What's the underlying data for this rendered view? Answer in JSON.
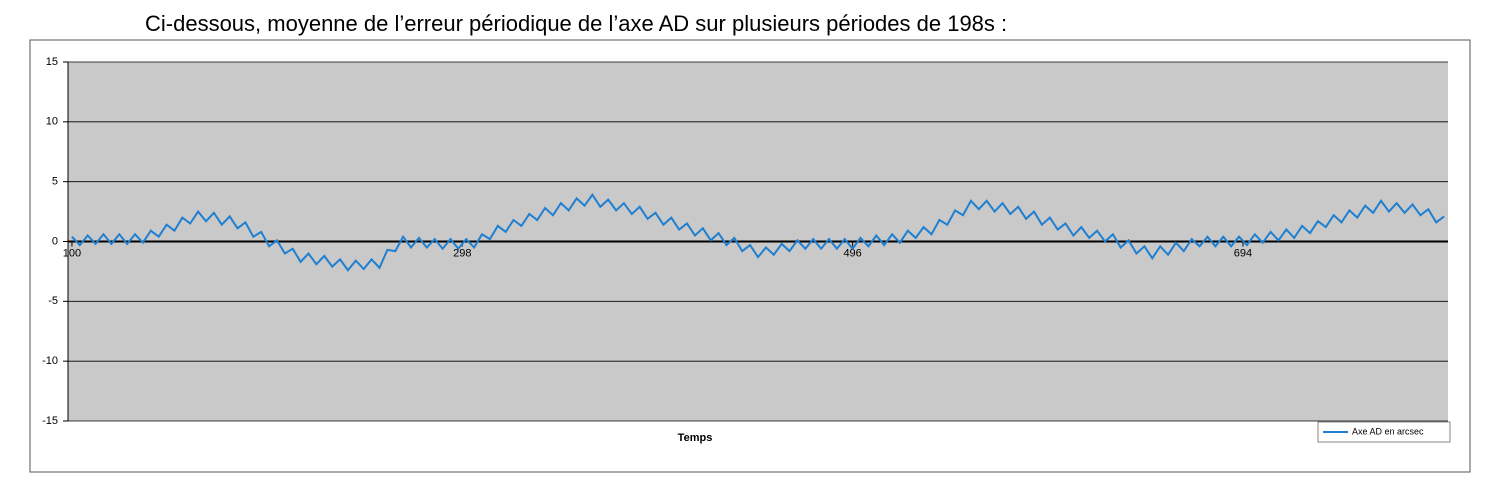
{
  "chart_data": {
    "type": "line",
    "title": "Ci-dessous, moyenne de l’erreur périodique de l’axe AD sur plusieurs périodes de 198s :",
    "x_label": "Temps",
    "xlim": [
      98,
      798
    ],
    "xticks": [
      100,
      298,
      496,
      694
    ],
    "ylim": [
      -15,
      15
    ],
    "yticks": [
      -15,
      -10,
      -5,
      0,
      5,
      10,
      15
    ],
    "grid": true,
    "legend": "lower right",
    "x": [
      100,
      104,
      108,
      112,
      116,
      120,
      124,
      128,
      132,
      136,
      140,
      144,
      148,
      152,
      156,
      160,
      164,
      168,
      172,
      176,
      180,
      184,
      188,
      192,
      196,
      200,
      204,
      208,
      212,
      216,
      220,
      224,
      228,
      232,
      236,
      240,
      244,
      248,
      252,
      256,
      260,
      264,
      268,
      272,
      276,
      280,
      284,
      288,
      292,
      296,
      300,
      304,
      308,
      312,
      316,
      320,
      324,
      328,
      332,
      336,
      340,
      344,
      348,
      352,
      356,
      360,
      364,
      368,
      372,
      376,
      380,
      384,
      388,
      392,
      396,
      400,
      404,
      408,
      412,
      416,
      420,
      424,
      428,
      432,
      436,
      440,
      444,
      448,
      452,
      456,
      460,
      464,
      468,
      472,
      476,
      480,
      484,
      488,
      492,
      496,
      500,
      504,
      508,
      512,
      516,
      520,
      524,
      528,
      532,
      536,
      540,
      544,
      548,
      552,
      556,
      560,
      564,
      568,
      572,
      576,
      580,
      584,
      588,
      592,
      596,
      600,
      604,
      608,
      612,
      616,
      620,
      624,
      628,
      632,
      636,
      640,
      644,
      648,
      652,
      656,
      660,
      664,
      668,
      672,
      676,
      680,
      684,
      688,
      692,
      696,
      700,
      704,
      708,
      712,
      716,
      720,
      724,
      728,
      732,
      736,
      740,
      744,
      748,
      752,
      756,
      760,
      764,
      768,
      772,
      776,
      780,
      784,
      788,
      792,
      796
    ],
    "series": [
      {
        "name": "Axe AD en arcsec",
        "color": "#1f7fd0",
        "values": [
          0.4,
          -0.3,
          0.5,
          -0.2,
          0.6,
          -0.2,
          0.6,
          -0.2,
          0.6,
          -0.1,
          0.9,
          0.4,
          1.4,
          0.9,
          2.0,
          1.5,
          2.5,
          1.7,
          2.4,
          1.4,
          2.1,
          1.1,
          1.6,
          0.4,
          0.8,
          -0.4,
          0.1,
          -1.0,
          -0.6,
          -1.7,
          -1.0,
          -1.9,
          -1.2,
          -2.1,
          -1.5,
          -2.4,
          -1.6,
          -2.3,
          -1.5,
          -2.2,
          -0.7,
          -0.8,
          0.4,
          -0.5,
          0.3,
          -0.5,
          0.2,
          -0.6,
          0.2,
          -0.6,
          0.2,
          -0.5,
          0.6,
          0.2,
          1.3,
          0.8,
          1.8,
          1.3,
          2.3,
          1.8,
          2.8,
          2.2,
          3.2,
          2.6,
          3.6,
          3.0,
          3.9,
          2.9,
          3.5,
          2.6,
          3.2,
          2.3,
          2.9,
          1.9,
          2.4,
          1.4,
          2.0,
          1.0,
          1.5,
          0.5,
          1.1,
          0.1,
          0.7,
          -0.3,
          0.3,
          -0.8,
          -0.3,
          -1.3,
          -0.5,
          -1.1,
          -0.2,
          -0.8,
          0.1,
          -0.6,
          0.2,
          -0.6,
          0.2,
          -0.6,
          0.2,
          -0.6,
          0.3,
          -0.4,
          0.5,
          -0.3,
          0.6,
          -0.1,
          0.9,
          0.3,
          1.2,
          0.6,
          1.8,
          1.4,
          2.6,
          2.2,
          3.4,
          2.7,
          3.4,
          2.5,
          3.2,
          2.3,
          2.9,
          1.9,
          2.5,
          1.4,
          2.0,
          1.0,
          1.5,
          0.5,
          1.2,
          0.3,
          0.9,
          0.0,
          0.6,
          -0.5,
          0.1,
          -1.0,
          -0.4,
          -1.4,
          -0.4,
          -1.1,
          -0.1,
          -0.8,
          0.2,
          -0.4,
          0.4,
          -0.4,
          0.4,
          -0.4,
          0.4,
          -0.3,
          0.6,
          -0.1,
          0.8,
          0.1,
          1.0,
          0.3,
          1.3,
          0.7,
          1.7,
          1.2,
          2.2,
          1.6,
          2.6,
          2.0,
          3.0,
          2.4,
          3.4,
          2.5,
          3.2,
          2.4,
          3.1,
          2.2,
          2.7,
          1.6,
          2.1
        ]
      }
    ]
  }
}
